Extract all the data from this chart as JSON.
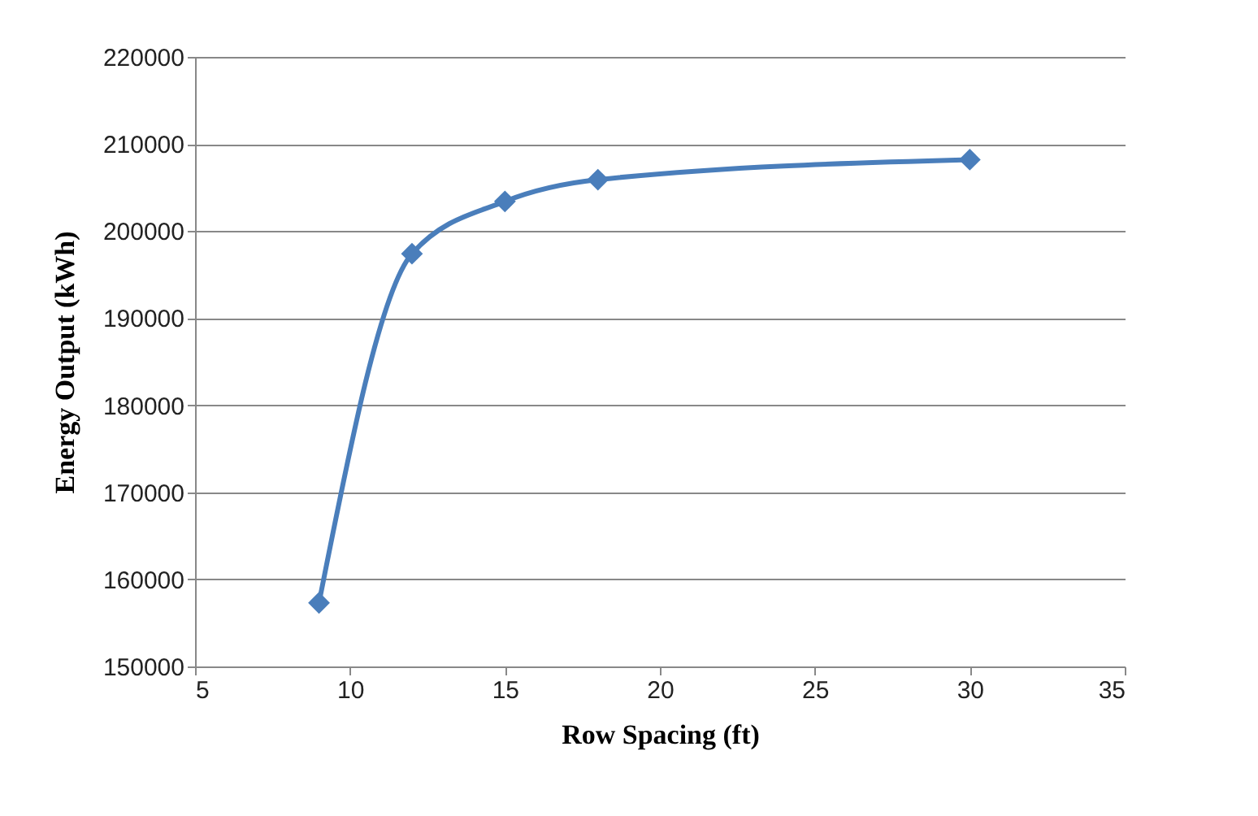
{
  "chart_data": {
    "type": "line",
    "xlabel": "Row Spacing (ft)",
    "ylabel": "Energy Output (kWh)",
    "x": [
      9,
      12,
      15,
      18,
      30
    ],
    "series": [
      {
        "color": "#4a7ebb",
        "values": [
          157300,
          197400,
          203400,
          205900,
          208200
        ]
      }
    ],
    "xlim": [
      5,
      35
    ],
    "xticks": [
      5,
      10,
      15,
      20,
      25,
      30,
      35
    ],
    "ylim": [
      150000,
      220000
    ],
    "yticks": [
      150000,
      160000,
      170000,
      180000,
      190000,
      200000,
      210000,
      220000
    ],
    "grid": "y",
    "marker": "diamond",
    "line_style": "solid"
  }
}
